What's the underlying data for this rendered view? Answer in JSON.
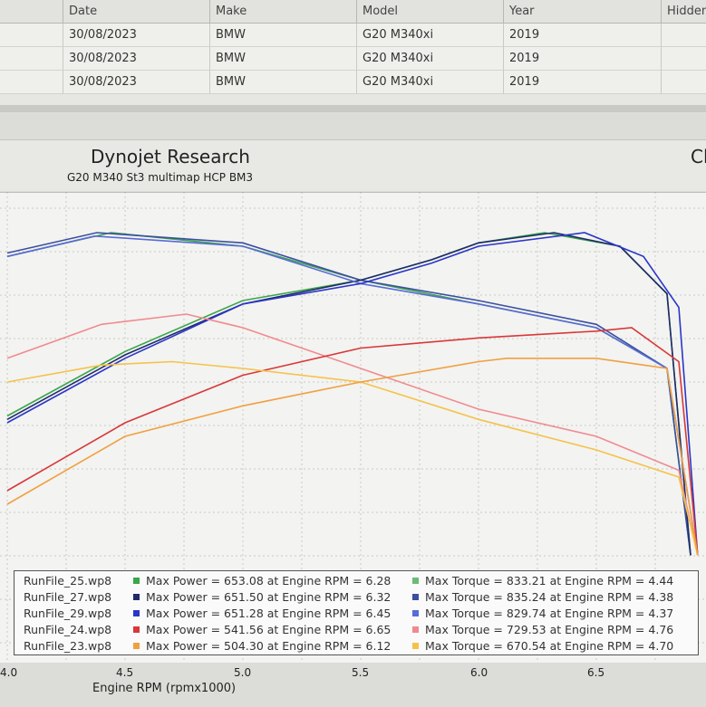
{
  "table": {
    "columns": [
      "Date",
      "Make",
      "Model",
      "Year",
      "Hidden"
    ],
    "rows": [
      [
        "30/08/2023",
        "BMW",
        "G20 M340xi",
        "2019"
      ],
      [
        "30/08/2023",
        "BMW",
        "G20 M340xi",
        "2019"
      ],
      [
        "30/08/2023",
        "BMW",
        "G20 M340xi",
        "2019"
      ]
    ]
  },
  "chart": {
    "title": "Dynojet Research",
    "subtitle": "G20 M340 St3 multimap HCP BM3",
    "corner_text": "Cl",
    "xlabel": "Engine RPM (rpmx1000)",
    "x_ticks": [
      "4.0",
      "4.5",
      "5.0",
      "5.5",
      "6.0",
      "6.5"
    ]
  },
  "chart_data": {
    "type": "line",
    "title": "Dynojet Research",
    "subtitle": "G20 M340 St3 multimap HCP BM3",
    "xlabel": "Engine RPM (rpmx1000)",
    "xlim": [
      4.0,
      6.95
    ],
    "grid": true,
    "legend_position": "bottom",
    "series": [
      {
        "name": "RunFile_25.wp8",
        "color": "#3aa64a",
        "max_power": "653.08",
        "power_rpm": "6.28",
        "max_torque": "833.21",
        "torque_rpm": "4.44",
        "power_curve": [
          [
            4.0,
            0.46
          ],
          [
            4.5,
            0.65
          ],
          [
            5.0,
            0.8
          ],
          [
            5.5,
            0.86
          ],
          [
            5.8,
            0.92
          ],
          [
            6.0,
            0.97
          ],
          [
            6.28,
            1.0
          ],
          [
            6.6,
            0.96
          ],
          [
            6.8,
            0.82
          ],
          [
            6.9,
            0.05
          ]
        ],
        "torque_curve": [
          [
            4.0,
            0.93
          ],
          [
            4.44,
            1.0
          ],
          [
            5.0,
            0.96
          ],
          [
            5.5,
            0.86
          ],
          [
            6.0,
            0.79
          ],
          [
            6.5,
            0.72
          ],
          [
            6.8,
            0.6
          ],
          [
            6.9,
            0.05
          ]
        ]
      },
      {
        "name": "RunFile_27.wp8",
        "color": "#1f2a6b",
        "max_power": "651.50",
        "power_rpm": "6.32",
        "max_torque": "835.24",
        "torque_rpm": "4.38",
        "power_curve": [
          [
            4.0,
            0.45
          ],
          [
            4.5,
            0.64
          ],
          [
            5.0,
            0.79
          ],
          [
            5.5,
            0.86
          ],
          [
            5.8,
            0.92
          ],
          [
            6.0,
            0.97
          ],
          [
            6.32,
            1.0
          ],
          [
            6.6,
            0.96
          ],
          [
            6.8,
            0.82
          ],
          [
            6.9,
            0.05
          ]
        ],
        "torque_curve": [
          [
            4.0,
            0.94
          ],
          [
            4.38,
            1.0
          ],
          [
            5.0,
            0.97
          ],
          [
            5.5,
            0.86
          ],
          [
            6.0,
            0.8
          ],
          [
            6.5,
            0.73
          ],
          [
            6.8,
            0.6
          ],
          [
            6.9,
            0.05
          ]
        ]
      },
      {
        "name": "RunFile_29.wp8",
        "color": "#2a36c8",
        "max_power": "651.28",
        "power_rpm": "6.45",
        "max_torque": "829.74",
        "torque_rpm": "4.37",
        "power_curve": [
          [
            4.0,
            0.44
          ],
          [
            4.5,
            0.63
          ],
          [
            5.0,
            0.79
          ],
          [
            5.5,
            0.85
          ],
          [
            5.8,
            0.91
          ],
          [
            6.0,
            0.96
          ],
          [
            6.45,
            1.0
          ],
          [
            6.7,
            0.93
          ],
          [
            6.85,
            0.78
          ],
          [
            6.93,
            0.05
          ]
        ],
        "torque_curve": [
          [
            4.0,
            0.93
          ],
          [
            4.37,
            0.99
          ],
          [
            5.0,
            0.96
          ],
          [
            5.5,
            0.85
          ],
          [
            6.0,
            0.79
          ],
          [
            6.5,
            0.72
          ],
          [
            6.8,
            0.6
          ],
          [
            6.93,
            0.05
          ]
        ]
      },
      {
        "name": "RunFile_24.wp8",
        "color": "#d8383a",
        "max_power": "541.56",
        "power_rpm": "6.65",
        "max_torque": "729.53",
        "torque_rpm": "4.76",
        "power_curve": [
          [
            4.0,
            0.24
          ],
          [
            4.5,
            0.44
          ],
          [
            5.0,
            0.58
          ],
          [
            5.5,
            0.66
          ],
          [
            6.0,
            0.69
          ],
          [
            6.5,
            0.71
          ],
          [
            6.65,
            0.72
          ],
          [
            6.85,
            0.62
          ],
          [
            6.93,
            0.05
          ]
        ],
        "torque_curve": [
          [
            4.0,
            0.63
          ],
          [
            4.4,
            0.73
          ],
          [
            4.76,
            0.76
          ],
          [
            5.0,
            0.72
          ],
          [
            5.5,
            0.6
          ],
          [
            6.0,
            0.48
          ],
          [
            6.5,
            0.4
          ],
          [
            6.85,
            0.3
          ],
          [
            6.93,
            0.05
          ]
        ]
      },
      {
        "name": "RunFile_23.wp8",
        "color": "#f0a040",
        "max_power": "504.30",
        "power_rpm": "6.12",
        "max_torque": "670.54",
        "torque_rpm": "4.70",
        "power_curve": [
          [
            4.0,
            0.2
          ],
          [
            4.5,
            0.4
          ],
          [
            5.0,
            0.49
          ],
          [
            5.5,
            0.56
          ],
          [
            6.0,
            0.62
          ],
          [
            6.12,
            0.63
          ],
          [
            6.5,
            0.63
          ],
          [
            6.8,
            0.6
          ],
          [
            6.93,
            0.05
          ]
        ],
        "torque_curve": [
          [
            4.0,
            0.56
          ],
          [
            4.4,
            0.61
          ],
          [
            4.7,
            0.62
          ],
          [
            5.0,
            0.6
          ],
          [
            5.5,
            0.56
          ],
          [
            6.0,
            0.45
          ],
          [
            6.5,
            0.36
          ],
          [
            6.85,
            0.28
          ],
          [
            6.93,
            0.05
          ]
        ]
      }
    ]
  },
  "legend": {
    "power_prefix": "Max Power = ",
    "torque_prefix": "Max Torque = ",
    "at_text": " at Engine RPM = "
  }
}
